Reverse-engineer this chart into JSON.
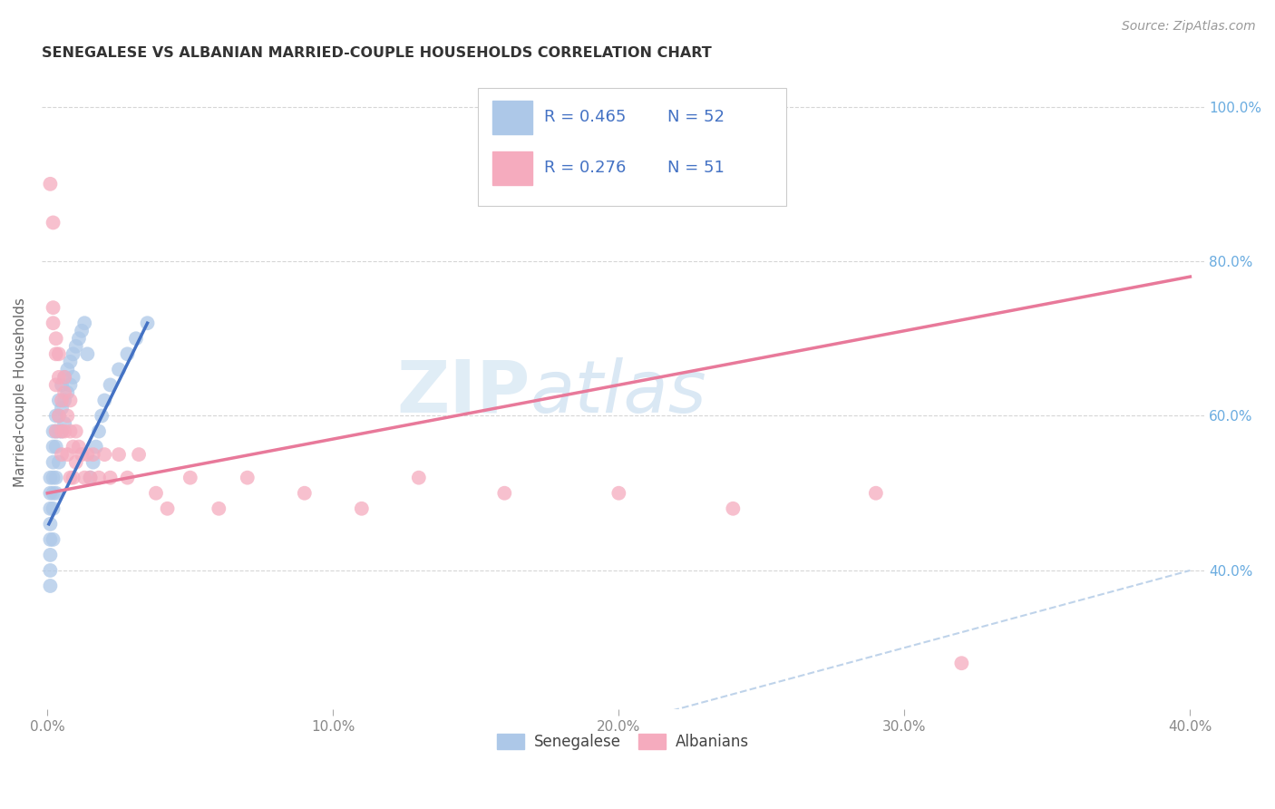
{
  "title": "SENEGALESE VS ALBANIAN MARRIED-COUPLE HOUSEHOLDS CORRELATION CHART",
  "source": "Source: ZipAtlas.com",
  "ylabel": "Married-couple Households",
  "xlim": [
    -0.002,
    0.405
  ],
  "ylim": [
    0.22,
    1.04
  ],
  "xticks": [
    0.0,
    0.1,
    0.2,
    0.3,
    0.4
  ],
  "xtick_labels": [
    "0.0%",
    "10.0%",
    "20.0%",
    "30.0%",
    "40.0%"
  ],
  "yticks": [
    0.4,
    0.6,
    0.8,
    1.0
  ],
  "ytick_labels": [
    "40.0%",
    "60.0%",
    "80.0%",
    "100.0%"
  ],
  "watermark_zip": "ZIP",
  "watermark_atlas": "atlas",
  "legend_r1": "R = 0.465",
  "legend_n1": "N = 52",
  "legend_r2": "R = 0.276",
  "legend_n2": "N = 51",
  "senegalese_color": "#adc8e8",
  "albanian_color": "#f5abbe",
  "senegalese_line_color": "#4472c4",
  "albanian_line_color": "#e8799a",
  "diagonal_color": "#b8cfe8",
  "background_color": "#ffffff",
  "tick_color": "#888888",
  "ytick_color": "#6aace0",
  "title_color": "#333333",
  "source_color": "#999999",
  "ylabel_color": "#666666",
  "legend_text_color": "#4472c4",
  "bottom_legend_color": "#444444",
  "grid_color": "#cccccc",
  "title_fontsize": 11.5,
  "tick_fontsize": 11,
  "legend_fontsize": 13,
  "ylabel_fontsize": 11,
  "source_fontsize": 10,
  "senegalese_x": [
    0.001,
    0.001,
    0.001,
    0.001,
    0.001,
    0.001,
    0.001,
    0.001,
    0.002,
    0.002,
    0.002,
    0.002,
    0.002,
    0.002,
    0.002,
    0.003,
    0.003,
    0.003,
    0.003,
    0.003,
    0.004,
    0.004,
    0.004,
    0.004,
    0.005,
    0.005,
    0.005,
    0.006,
    0.006,
    0.006,
    0.007,
    0.007,
    0.008,
    0.008,
    0.009,
    0.009,
    0.01,
    0.011,
    0.012,
    0.013,
    0.014,
    0.015,
    0.016,
    0.017,
    0.018,
    0.019,
    0.02,
    0.022,
    0.025,
    0.028,
    0.031,
    0.035
  ],
  "senegalese_y": [
    0.52,
    0.5,
    0.48,
    0.46,
    0.44,
    0.42,
    0.4,
    0.38,
    0.58,
    0.56,
    0.54,
    0.52,
    0.5,
    0.48,
    0.44,
    0.6,
    0.58,
    0.56,
    0.52,
    0.5,
    0.62,
    0.6,
    0.58,
    0.54,
    0.64,
    0.61,
    0.58,
    0.65,
    0.62,
    0.59,
    0.66,
    0.63,
    0.67,
    0.64,
    0.68,
    0.65,
    0.69,
    0.7,
    0.71,
    0.72,
    0.68,
    0.52,
    0.54,
    0.56,
    0.58,
    0.6,
    0.62,
    0.64,
    0.66,
    0.68,
    0.7,
    0.72
  ],
  "albanian_x": [
    0.001,
    0.002,
    0.002,
    0.003,
    0.003,
    0.003,
    0.004,
    0.004,
    0.005,
    0.005,
    0.005,
    0.006,
    0.006,
    0.007,
    0.007,
    0.008,
    0.008,
    0.009,
    0.009,
    0.01,
    0.01,
    0.011,
    0.012,
    0.013,
    0.014,
    0.015,
    0.016,
    0.018,
    0.02,
    0.022,
    0.025,
    0.028,
    0.032,
    0.038,
    0.042,
    0.05,
    0.06,
    0.07,
    0.09,
    0.11,
    0.13,
    0.16,
    0.2,
    0.24,
    0.29,
    0.002,
    0.003,
    0.004,
    0.006,
    0.008,
    0.32
  ],
  "albanian_y": [
    0.9,
    0.85,
    0.72,
    0.68,
    0.64,
    0.58,
    0.65,
    0.6,
    0.62,
    0.58,
    0.55,
    0.63,
    0.58,
    0.6,
    0.55,
    0.58,
    0.52,
    0.56,
    0.52,
    0.58,
    0.54,
    0.56,
    0.55,
    0.52,
    0.55,
    0.52,
    0.55,
    0.52,
    0.55,
    0.52,
    0.55,
    0.52,
    0.55,
    0.5,
    0.48,
    0.52,
    0.48,
    0.52,
    0.5,
    0.48,
    0.52,
    0.5,
    0.5,
    0.48,
    0.5,
    0.74,
    0.7,
    0.68,
    0.65,
    0.62,
    0.28
  ],
  "albanian_line_x": [
    0.0,
    0.4
  ],
  "albanian_line_y": [
    0.5,
    0.78
  ],
  "senegalese_line_x": [
    0.0005,
    0.035
  ],
  "senegalese_line_y": [
    0.46,
    0.72
  ]
}
